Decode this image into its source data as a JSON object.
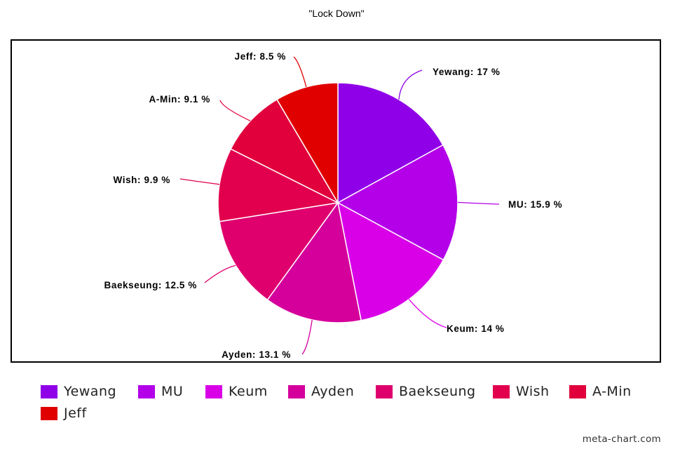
{
  "chart_data": {
    "type": "pie",
    "title": "\"Lock Down\"",
    "legend_position": "bottom",
    "slices": [
      {
        "name": "Yewang",
        "value": 17,
        "label": "Yewang: 17 %",
        "color": "#8f00e8"
      },
      {
        "name": "MU",
        "value": 15.9,
        "label": "MU: 15.9 %",
        "color": "#b300e8"
      },
      {
        "name": "Keum",
        "value": 14,
        "label": "Keum: 14 %",
        "color": "#d900e8"
      },
      {
        "name": "Ayden",
        "value": 13.1,
        "label": "Ayden: 13.1 %",
        "color": "#d5009c"
      },
      {
        "name": "Baekseung",
        "value": 12.5,
        "label": "Baekseung: 12.5 %",
        "color": "#df006e"
      },
      {
        "name": "Wish",
        "value": 9.9,
        "label": "Wish: 9.9 %",
        "color": "#e2004e"
      },
      {
        "name": "A-Min",
        "value": 9.1,
        "label": "A-Min: 9.1 %",
        "color": "#e1003c"
      },
      {
        "name": "Jeff",
        "value": 8.5,
        "label": "Jeff: 8.5 %",
        "color": "#e00000"
      }
    ]
  },
  "watermark": "meta-chart.com"
}
